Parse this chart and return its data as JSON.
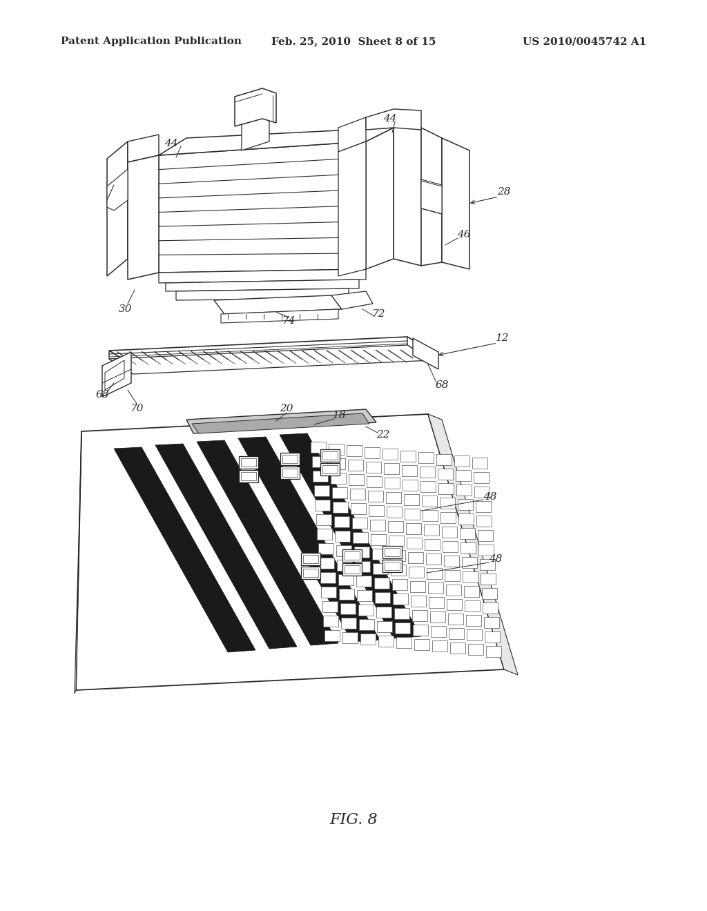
{
  "background_color": "#ffffff",
  "header_left": "Patent Application Publication",
  "header_center": "Feb. 25, 2010  Sheet 8 of 15",
  "header_right": "US 2010/0045742 A1",
  "figure_label": "FIG. 8",
  "line_color": "#2a2a2a",
  "header_font_size": 11,
  "label_font_size": 11,
  "fig_label_font_size": 16
}
